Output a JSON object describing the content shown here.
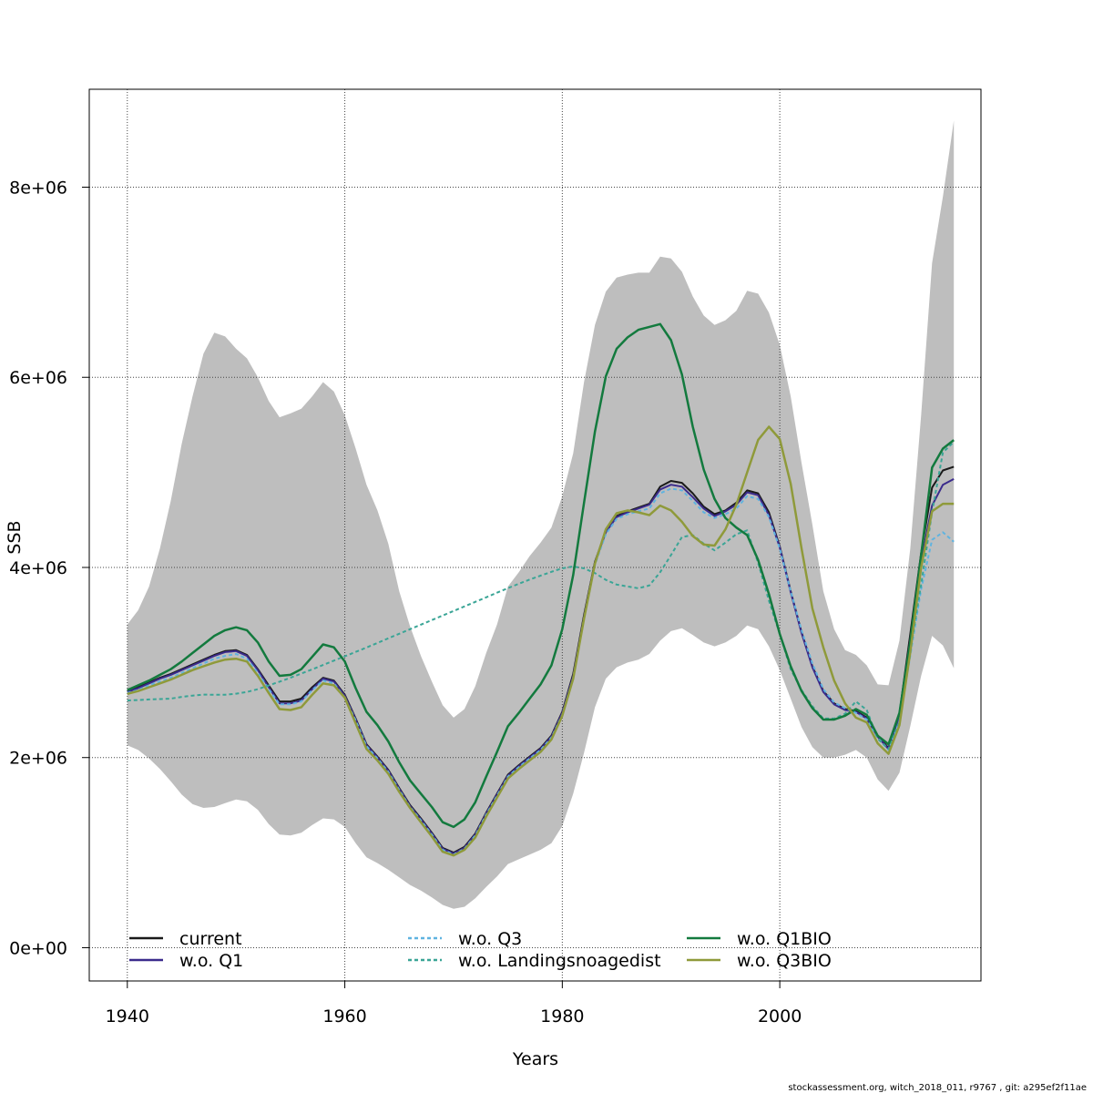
{
  "chart_data": {
    "type": "line",
    "title": "",
    "xlabel": "Years",
    "ylabel": "SSB",
    "xlim": [
      1936.5,
      2018.5
    ],
    "ylim": [
      -350000,
      9030000
    ],
    "grid": true,
    "legend_placement": "bottom",
    "x_ticks": [
      1940,
      1960,
      1980,
      2000
    ],
    "x_tick_labels": [
      "1940",
      "1960",
      "1980",
      "2000"
    ],
    "y_ticks": [
      0,
      2000000,
      4000000,
      6000000,
      8000000
    ],
    "y_tick_labels": [
      "0e+00",
      "2e+06",
      "4e+06",
      "6e+06",
      "8e+06"
    ],
    "years": [
      1940,
      1941,
      1942,
      1943,
      1944,
      1945,
      1946,
      1947,
      1948,
      1949,
      1950,
      1951,
      1952,
      1953,
      1954,
      1955,
      1956,
      1957,
      1958,
      1959,
      1960,
      1961,
      1962,
      1963,
      1964,
      1965,
      1966,
      1967,
      1968,
      1969,
      1970,
      1971,
      1972,
      1973,
      1974,
      1975,
      1976,
      1977,
      1978,
      1979,
      1980,
      1981,
      1982,
      1983,
      1984,
      1985,
      1986,
      1987,
      1988,
      1989,
      1990,
      1991,
      1992,
      1993,
      1994,
      1995,
      1996,
      1997,
      1998,
      1999,
      2000,
      2001,
      2002,
      2003,
      2004,
      2005,
      2006,
      2007,
      2008,
      2009,
      2010,
      2011,
      2012,
      2013,
      2014,
      2015,
      2016
    ],
    "confidence_band": {
      "color": "#bebebe",
      "upper": [
        3400000,
        3550000,
        3800000,
        4200000,
        4700000,
        5300000,
        5800000,
        6250000,
        6470000,
        6430000,
        6300000,
        6200000,
        6000000,
        5750000,
        5580000,
        5620000,
        5670000,
        5800000,
        5950000,
        5850000,
        5600000,
        5250000,
        4870000,
        4600000,
        4250000,
        3750000,
        3380000,
        3070000,
        2800000,
        2550000,
        2420000,
        2510000,
        2750000,
        3100000,
        3400000,
        3800000,
        3950000,
        4120000,
        4260000,
        4420000,
        4750000,
        5200000,
        5950000,
        6550000,
        6900000,
        7050000,
        7080000,
        7100000,
        7100000,
        7270000,
        7250000,
        7110000,
        6850000,
        6650000,
        6550000,
        6600000,
        6700000,
        6910000,
        6880000,
        6680000,
        6340000,
        5800000,
        5100000,
        4450000,
        3750000,
        3350000,
        3130000,
        3080000,
        2970000,
        2770000,
        2760000,
        3230000,
        4200000,
        5600000,
        7200000,
        7900000,
        8700000
      ],
      "lower": [
        2130000,
        2080000,
        1990000,
        1880000,
        1750000,
        1610000,
        1510000,
        1470000,
        1480000,
        1520000,
        1560000,
        1540000,
        1450000,
        1300000,
        1190000,
        1180000,
        1210000,
        1290000,
        1360000,
        1350000,
        1270000,
        1100000,
        950000,
        890000,
        820000,
        740000,
        660000,
        600000,
        530000,
        450000,
        410000,
        430000,
        520000,
        640000,
        750000,
        880000,
        930000,
        980000,
        1030000,
        1100000,
        1280000,
        1620000,
        2050000,
        2530000,
        2830000,
        2950000,
        3000000,
        3030000,
        3090000,
        3230000,
        3330000,
        3360000,
        3290000,
        3210000,
        3170000,
        3210000,
        3280000,
        3390000,
        3350000,
        3170000,
        2920000,
        2620000,
        2320000,
        2110000,
        2000000,
        2000000,
        2030000,
        2080000,
        2000000,
        1770000,
        1650000,
        1840000,
        2330000,
        2860000,
        3280000,
        3180000,
        2940000
      ]
    },
    "series": [
      {
        "name": "current",
        "color": "#1a1a1a",
        "dash": "",
        "width": 2,
        "values": [
          2700000,
          2740000,
          2790000,
          2840000,
          2880000,
          2930000,
          2980000,
          3030000,
          3080000,
          3120000,
          3130000,
          3080000,
          2930000,
          2760000,
          2590000,
          2590000,
          2620000,
          2740000,
          2840000,
          2810000,
          2660000,
          2410000,
          2140000,
          2010000,
          1870000,
          1680000,
          1500000,
          1360000,
          1210000,
          1050000,
          1000000,
          1060000,
          1200000,
          1420000,
          1620000,
          1820000,
          1920000,
          2010000,
          2100000,
          2230000,
          2480000,
          2880000,
          3500000,
          4060000,
          4380000,
          4540000,
          4590000,
          4630000,
          4670000,
          4850000,
          4910000,
          4890000,
          4780000,
          4640000,
          4560000,
          4600000,
          4680000,
          4810000,
          4780000,
          4580000,
          4220000,
          3750000,
          3320000,
          2960000,
          2700000,
          2570000,
          2510000,
          2490000,
          2420000,
          2230000,
          2100000,
          2460000,
          3300000,
          4150000,
          4840000,
          5020000,
          5060000
        ]
      },
      {
        "name": "w.o. Q1",
        "color": "#3b2b8c",
        "dash": "",
        "width": 2,
        "values": [
          2690000,
          2730000,
          2780000,
          2830000,
          2870000,
          2920000,
          2970000,
          3020000,
          3070000,
          3110000,
          3120000,
          3070000,
          2920000,
          2740000,
          2570000,
          2570000,
          2600000,
          2720000,
          2830000,
          2800000,
          2650000,
          2400000,
          2130000,
          2000000,
          1860000,
          1670000,
          1490000,
          1350000,
          1200000,
          1040000,
          990000,
          1050000,
          1190000,
          1410000,
          1610000,
          1810000,
          1910000,
          2000000,
          2090000,
          2220000,
          2470000,
          2860000,
          3480000,
          4050000,
          4370000,
          4530000,
          4580000,
          4620000,
          4660000,
          4820000,
          4870000,
          4850000,
          4740000,
          4620000,
          4540000,
          4590000,
          4660000,
          4790000,
          4760000,
          4550000,
          4210000,
          3740000,
          3310000,
          2950000,
          2690000,
          2560000,
          2500000,
          2480000,
          2410000,
          2220000,
          2090000,
          2440000,
          3240000,
          4060000,
          4650000,
          4870000,
          4930000
        ]
      },
      {
        "name": "w.o. Q3",
        "color": "#5fb3e0",
        "dash": "4 3",
        "width": 2,
        "values": [
          2680000,
          2710000,
          2760000,
          2800000,
          2840000,
          2890000,
          2940000,
          2990000,
          3040000,
          3070000,
          3090000,
          3040000,
          2890000,
          2720000,
          2560000,
          2560000,
          2590000,
          2710000,
          2810000,
          2780000,
          2630000,
          2390000,
          2120000,
          1990000,
          1850000,
          1660000,
          1480000,
          1340000,
          1190000,
          1030000,
          980000,
          1040000,
          1180000,
          1400000,
          1600000,
          1800000,
          1900000,
          1990000,
          2080000,
          2210000,
          2450000,
          2840000,
          3460000,
          4030000,
          4350000,
          4510000,
          4560000,
          4590000,
          4620000,
          4780000,
          4830000,
          4810000,
          4700000,
          4580000,
          4520000,
          4560000,
          4620000,
          4750000,
          4720000,
          4530000,
          4200000,
          3750000,
          3340000,
          2990000,
          2720000,
          2580000,
          2520000,
          2470000,
          2400000,
          2210000,
          2080000,
          2380000,
          3070000,
          3770000,
          4290000,
          4370000,
          4270000
        ]
      },
      {
        "name": "w.o. Landingsnoagedist",
        "color": "#3aa596",
        "dash": "4 3",
        "width": 2,
        "values": [
          2600000,
          2605000,
          2612000,
          2615000,
          2620000,
          2638000,
          2652000,
          2662000,
          2660000,
          2660000,
          2672000,
          2690000,
          2720000,
          2758000,
          2798000,
          2840000,
          2884000,
          2928000,
          2974000,
          3020000,
          3066000,
          3112000,
          3158000,
          3206000,
          3254000,
          3302000,
          3350000,
          3398000,
          3446000,
          3494000,
          3542000,
          3590000,
          3638000,
          3686000,
          3734000,
          3782000,
          3828000,
          3872000,
          3914000,
          3954000,
          3990000,
          4010000,
          3990000,
          3940000,
          3870000,
          3820000,
          3800000,
          3780000,
          3810000,
          3950000,
          4130000,
          4320000,
          4340000,
          4250000,
          4180000,
          4260000,
          4350000,
          4390000,
          4050000,
          3650000,
          3300000,
          2930000,
          2710000,
          2540000,
          2410000,
          2410000,
          2460000,
          2590000,
          2500000,
          2200000,
          2090000,
          2380000,
          3120000,
          3820000,
          4580000,
          5210000,
          5320000
        ]
      },
      {
        "name": "w.o. Q1BIO",
        "color": "#137a3e",
        "dash": "",
        "width": 2.5,
        "values": [
          2710000,
          2760000,
          2810000,
          2870000,
          2930000,
          3010000,
          3100000,
          3190000,
          3280000,
          3340000,
          3370000,
          3340000,
          3210000,
          3010000,
          2860000,
          2870000,
          2930000,
          3060000,
          3190000,
          3160000,
          3010000,
          2730000,
          2480000,
          2340000,
          2170000,
          1950000,
          1760000,
          1620000,
          1480000,
          1320000,
          1270000,
          1350000,
          1530000,
          1800000,
          2060000,
          2330000,
          2470000,
          2620000,
          2770000,
          2970000,
          3350000,
          3920000,
          4680000,
          5430000,
          6010000,
          6300000,
          6420000,
          6500000,
          6530000,
          6560000,
          6390000,
          6030000,
          5480000,
          5030000,
          4720000,
          4520000,
          4420000,
          4340000,
          4080000,
          3720000,
          3300000,
          2960000,
          2700000,
          2520000,
          2400000,
          2400000,
          2440000,
          2510000,
          2450000,
          2230000,
          2140000,
          2470000,
          3220000,
          4130000,
          5050000,
          5250000,
          5340000
        ]
      },
      {
        "name": "w.o. Q3BIO",
        "color": "#8f9a3a",
        "dash": "",
        "width": 2.5,
        "values": [
          2670000,
          2700000,
          2740000,
          2780000,
          2820000,
          2870000,
          2920000,
          2960000,
          3000000,
          3030000,
          3040000,
          3010000,
          2860000,
          2680000,
          2510000,
          2500000,
          2530000,
          2660000,
          2780000,
          2760000,
          2630000,
          2360000,
          2090000,
          1970000,
          1830000,
          1640000,
          1470000,
          1320000,
          1170000,
          1010000,
          970000,
          1030000,
          1160000,
          1380000,
          1580000,
          1780000,
          1880000,
          1970000,
          2060000,
          2190000,
          2440000,
          2830000,
          3460000,
          4040000,
          4400000,
          4570000,
          4600000,
          4580000,
          4550000,
          4650000,
          4600000,
          4480000,
          4330000,
          4240000,
          4230000,
          4400000,
          4660000,
          5000000,
          5340000,
          5480000,
          5350000,
          4880000,
          4200000,
          3570000,
          3160000,
          2810000,
          2570000,
          2420000,
          2370000,
          2150000,
          2040000,
          2340000,
          3110000,
          4000000,
          4590000,
          4670000,
          4670000
        ]
      }
    ],
    "legend": {
      "entries": [
        "current",
        "w.o. Q3",
        "w.o. Q1BIO",
        "w.o. Q1",
        "w.o. Landingsnoagedist",
        "w.o. Q3BIO"
      ]
    }
  },
  "footer": {
    "caption": "stockassessment.org, witch_2018_011, r9767 , git: a295ef2f11ae"
  }
}
